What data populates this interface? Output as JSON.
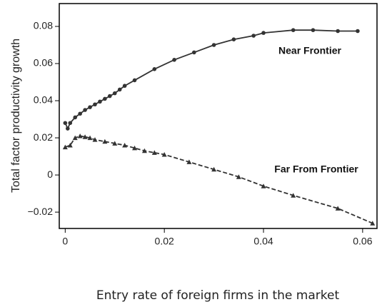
{
  "chart_data": {
    "type": "line",
    "xlabel": "Entry rate of foreign firms in the market",
    "ylabel": "Total factor productivity growth",
    "xlim": [
      -0.0012,
      0.0629
    ],
    "ylim": [
      -0.0288,
      0.0923
    ],
    "xticks": [
      0,
      0.02,
      0.04,
      0.06
    ],
    "yticks": [
      {
        "value": -0.02,
        "label": "−0.02"
      },
      0,
      0.02,
      0.04,
      0.06,
      0.08
    ],
    "grid": false,
    "series": [
      {
        "name": "Near Frontier",
        "color": "#333333",
        "dash": "solid",
        "marker": "circle",
        "x": [
          0,
          0.0005,
          0.001,
          0.002,
          0.003,
          0.004,
          0.005,
          0.006,
          0.007,
          0.008,
          0.009,
          0.01,
          0.011,
          0.012,
          0.014,
          0.018,
          0.022,
          0.026,
          0.03,
          0.034,
          0.038,
          0.04,
          0.046,
          0.05,
          0.055,
          0.059
        ],
        "values": [
          0.028,
          0.025,
          0.028,
          0.031,
          0.033,
          0.035,
          0.0365,
          0.038,
          0.0395,
          0.041,
          0.0425,
          0.044,
          0.046,
          0.048,
          0.051,
          0.057,
          0.062,
          0.066,
          0.07,
          0.073,
          0.075,
          0.0765,
          0.078,
          0.078,
          0.0775,
          0.0775
        ]
      },
      {
        "name": "Far From Frontier",
        "color": "#333333",
        "dash": "dashed",
        "marker": "triangle",
        "x": [
          0,
          0.001,
          0.002,
          0.003,
          0.004,
          0.005,
          0.006,
          0.008,
          0.01,
          0.012,
          0.014,
          0.016,
          0.018,
          0.02,
          0.025,
          0.03,
          0.035,
          0.04,
          0.046,
          0.055,
          0.062
        ],
        "values": [
          0.015,
          0.016,
          0.02,
          0.021,
          0.0205,
          0.02,
          0.019,
          0.018,
          0.017,
          0.016,
          0.0145,
          0.013,
          0.012,
          0.011,
          0.007,
          0.003,
          -0.001,
          -0.006,
          -0.011,
          -0.018,
          -0.026
        ]
      }
    ]
  }
}
